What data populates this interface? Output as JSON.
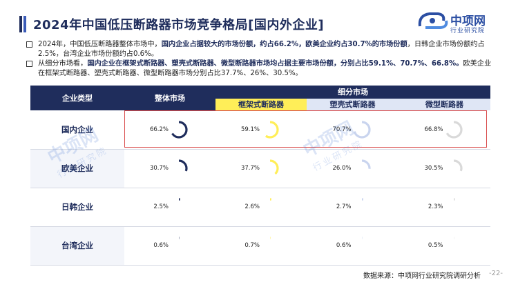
{
  "title": "2024年中国低压断路器市场竞争格局[国内外企业]",
  "logo": {
    "name": "中项网",
    "sub": "行业研究院"
  },
  "bullets": [
    {
      "p1": "2024年，中国低压断路器整体市场中，",
      "b1": "国内企业占据较大的市场份额，约占66.2%，欧美企业约占30.7%的市场份额",
      "p2": "，日韩企业市场份额约占2.5%，台湾企业市场份额约占0.6%。"
    },
    {
      "p1": "从细分市场看，",
      "b1": "国内企业在框架式断路器、塑壳式断路器、微型断路器市场均占据主要市场份额，分别占比59.1%、70.7%、66.8%。",
      "p2": "欧美企业在框架式断路器、塑壳式断路器、微型断路器市场分别占比37.7%、26%、30.5%。"
    }
  ],
  "table": {
    "header_company": "企业类型",
    "header_overall": "整体市场",
    "header_segments": "细分市场",
    "segments": [
      "框架式断路器",
      "塑壳式断路器",
      "微型断路器"
    ],
    "rows": [
      {
        "name": "国内企业",
        "cells": [
          {
            "label": "66.2%",
            "value": 66.2
          },
          {
            "label": "59.1%",
            "value": 59.1
          },
          {
            "label": "70.7%",
            "value": 70.7
          },
          {
            "label": "66.8%",
            "value": 66.8
          }
        ]
      },
      {
        "name": "欧美企业",
        "cells": [
          {
            "label": "30.7%",
            "value": 30.7
          },
          {
            "label": "37.7%",
            "value": 37.7
          },
          {
            "label": "26.0%",
            "value": 26.0
          },
          {
            "label": "30.5%",
            "value": 30.5
          }
        ]
      },
      {
        "name": "日韩企业",
        "cells": [
          {
            "label": "2.5%",
            "value": 2.5
          },
          {
            "label": "2.6%",
            "value": 2.6
          },
          {
            "label": "2.7%",
            "value": 2.7
          },
          {
            "label": "2.3%",
            "value": 2.3
          }
        ]
      },
      {
        "name": "台湾企业",
        "cells": [
          {
            "label": "0.6%",
            "value": 0.6
          },
          {
            "label": "0.7%",
            "value": 0.7
          },
          {
            "label": "0.6%",
            "value": 0.6
          },
          {
            "label": "0.5%",
            "value": 0.5
          }
        ]
      }
    ]
  },
  "colors": {
    "navy": "#1f2d5c",
    "yellow": "#ffee58",
    "light_blue": "#dfe6f5",
    "highlight": "#d94b4b",
    "ring_overall": "#1f2d5c",
    "ring_frame": "#ffee58",
    "ring_molded": "#c9d4ee",
    "ring_micro": "#d9d9d9"
  },
  "watermark": {
    "main": "中项网",
    "sub": "行业研究院"
  },
  "source": "数据来源：中项网行业研究院调研分析",
  "page_number": "-22-"
}
